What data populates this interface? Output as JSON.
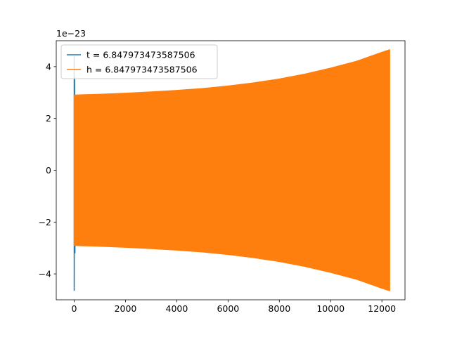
{
  "chart_data": {
    "type": "line",
    "title": "",
    "xlabel": "",
    "ylabel": "",
    "offset_text": "1e−23",
    "xlim": [
      -700,
      12900
    ],
    "ylim": [
      -5.0,
      5.0
    ],
    "xticks": [
      0,
      2000,
      4000,
      6000,
      8000,
      10000,
      12000
    ],
    "xtick_labels": [
      "0",
      "2000",
      "4000",
      "6000",
      "8000",
      "10000",
      "12000"
    ],
    "yticks": [
      -4,
      -2,
      0,
      2,
      4
    ],
    "ytick_labels": [
      "−4",
      "−2",
      "0",
      "2",
      "4"
    ],
    "grid": false,
    "legend_position": "upper-left",
    "series": [
      {
        "name": "t = 6.847973473587506",
        "color": "#1f77b4",
        "kind": "spike",
        "x": [
          0,
          0,
          15,
          30
        ],
        "y": [
          4.4,
          -4.65,
          3.6,
          -3.2
        ]
      },
      {
        "name": "h = 6.847973473587506",
        "color": "#ff7f0e",
        "kind": "envelope",
        "x": [
          0,
          1000,
          2000,
          3000,
          4000,
          5000,
          6000,
          7000,
          8000,
          9000,
          10000,
          11000,
          12000,
          12300
        ],
        "upper": [
          2.9,
          2.93,
          2.97,
          3.02,
          3.08,
          3.15,
          3.25,
          3.37,
          3.52,
          3.71,
          3.94,
          4.2,
          4.55,
          4.65
        ],
        "lower": [
          -2.9,
          -2.93,
          -2.97,
          -3.02,
          -3.08,
          -3.15,
          -3.25,
          -3.37,
          -3.52,
          -3.71,
          -3.94,
          -4.2,
          -4.55,
          -4.65
        ]
      }
    ]
  }
}
